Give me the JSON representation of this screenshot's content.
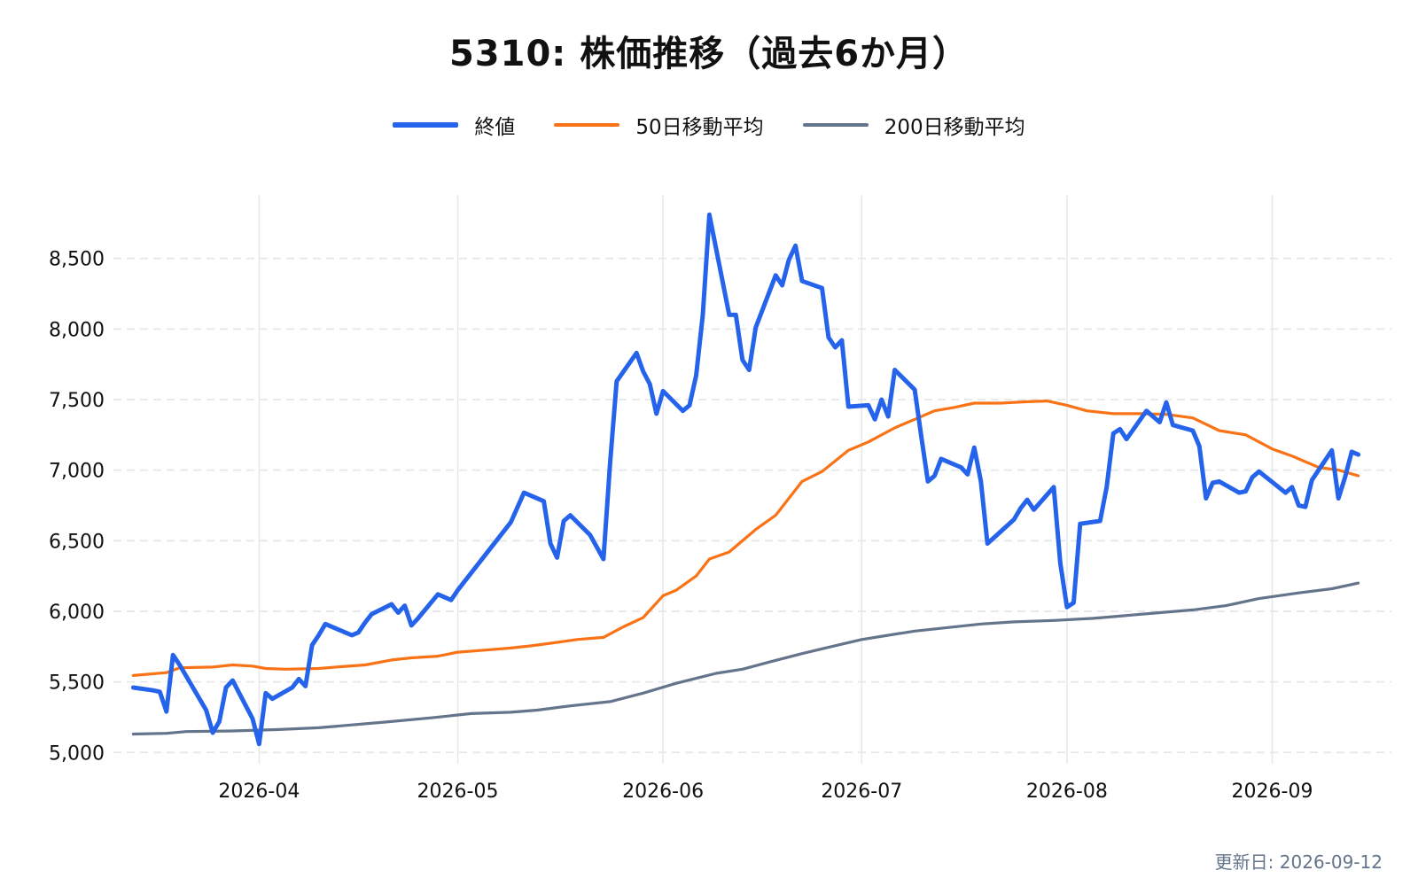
{
  "colors": {
    "close": "#2563eb",
    "ma50": "#f97316",
    "ma200": "#64748b",
    "grid": "#e5e7eb",
    "text": "#111111"
  },
  "footer": "更新日: 2026-09-12",
  "chart_data": {
    "type": "line",
    "title": "5310: 株価推移（過去6か月）",
    "xlabel": "",
    "ylabel": "",
    "xlim": [
      "2026-03-10",
      "2026-09-19"
    ],
    "ylim": [
      4920,
      8950
    ],
    "y_ticks": [
      5000,
      5500,
      6000,
      6500,
      7000,
      7500,
      8000,
      8500
    ],
    "y_tick_labels": [
      "5,000",
      "5,500",
      "6,000",
      "6,500",
      "7,000",
      "7,500",
      "8,000",
      "8,500"
    ],
    "x_ticks": [
      "2026-04-01",
      "2026-05-01",
      "2026-06-01",
      "2026-07-01",
      "2026-08-01",
      "2026-09-01"
    ],
    "x_tick_labels": [
      "2026-04",
      "2026-05",
      "2026-06",
      "2026-07",
      "2026-08",
      "2026-09"
    ],
    "grid": {
      "horizontal": "dashed",
      "vertical": "solid"
    },
    "legend_position": "top-center",
    "series": [
      {
        "name": "終値",
        "color_key": "close",
        "points": [
          [
            "2026-03-13",
            5460
          ],
          [
            "2026-03-16",
            5440
          ],
          [
            "2026-03-17",
            5430
          ],
          [
            "2026-03-18",
            5290
          ],
          [
            "2026-03-19",
            5690
          ],
          [
            "2026-03-20",
            5620
          ],
          [
            "2026-03-23",
            5380
          ],
          [
            "2026-03-24",
            5300
          ],
          [
            "2026-03-25",
            5140
          ],
          [
            "2026-03-26",
            5220
          ],
          [
            "2026-03-27",
            5460
          ],
          [
            "2026-03-28",
            5510
          ],
          [
            "2026-03-30",
            5330
          ],
          [
            "2026-03-31",
            5240
          ],
          [
            "2026-04-01",
            5060
          ],
          [
            "2026-04-02",
            5420
          ],
          [
            "2026-04-03",
            5380
          ],
          [
            "2026-04-06",
            5460
          ],
          [
            "2026-04-07",
            5520
          ],
          [
            "2026-04-08",
            5470
          ],
          [
            "2026-04-09",
            5760
          ],
          [
            "2026-04-10",
            5830
          ],
          [
            "2026-04-11",
            5910
          ],
          [
            "2026-04-14",
            5850
          ],
          [
            "2026-04-15",
            5830
          ],
          [
            "2026-04-16",
            5850
          ],
          [
            "2026-04-17",
            5920
          ],
          [
            "2026-04-18",
            5980
          ],
          [
            "2026-04-21",
            6050
          ],
          [
            "2026-04-22",
            5990
          ],
          [
            "2026-04-23",
            6040
          ],
          [
            "2026-04-24",
            5900
          ],
          [
            "2026-04-25",
            5950
          ],
          [
            "2026-04-28",
            6120
          ],
          [
            "2026-04-30",
            6080
          ],
          [
            "2026-05-01",
            6150
          ],
          [
            "2026-05-05",
            6390
          ],
          [
            "2026-05-09",
            6630
          ],
          [
            "2026-05-11",
            6840
          ],
          [
            "2026-05-14",
            6780
          ],
          [
            "2026-05-15",
            6480
          ],
          [
            "2026-05-16",
            6380
          ],
          [
            "2026-05-17",
            6640
          ],
          [
            "2026-05-18",
            6680
          ],
          [
            "2026-05-21",
            6540
          ],
          [
            "2026-05-23",
            6370
          ],
          [
            "2026-05-24",
            7050
          ],
          [
            "2026-05-25",
            7630
          ],
          [
            "2026-05-28",
            7830
          ],
          [
            "2026-05-29",
            7700
          ],
          [
            "2026-05-30",
            7610
          ],
          [
            "2026-05-31",
            7400
          ],
          [
            "2026-06-01",
            7560
          ],
          [
            "2026-06-04",
            7420
          ],
          [
            "2026-06-05",
            7460
          ],
          [
            "2026-06-06",
            7670
          ],
          [
            "2026-06-07",
            8100
          ],
          [
            "2026-06-08",
            8810
          ],
          [
            "2026-06-11",
            8100
          ],
          [
            "2026-06-12",
            8100
          ],
          [
            "2026-06-13",
            7780
          ],
          [
            "2026-06-14",
            7710
          ],
          [
            "2026-06-15",
            8010
          ],
          [
            "2026-06-18",
            8380
          ],
          [
            "2026-06-19",
            8310
          ],
          [
            "2026-06-20",
            8490
          ],
          [
            "2026-06-21",
            8590
          ],
          [
            "2026-06-22",
            8340
          ],
          [
            "2026-06-25",
            8290
          ],
          [
            "2026-06-26",
            7940
          ],
          [
            "2026-06-27",
            7870
          ],
          [
            "2026-06-28",
            7920
          ],
          [
            "2026-06-29",
            7450
          ],
          [
            "2026-07-02",
            7460
          ],
          [
            "2026-07-03",
            7360
          ],
          [
            "2026-07-04",
            7500
          ],
          [
            "2026-07-05",
            7380
          ],
          [
            "2026-07-06",
            7710
          ],
          [
            "2026-07-09",
            7570
          ],
          [
            "2026-07-10",
            7240
          ],
          [
            "2026-07-11",
            6920
          ],
          [
            "2026-07-12",
            6960
          ],
          [
            "2026-07-13",
            7080
          ],
          [
            "2026-07-16",
            7020
          ],
          [
            "2026-07-17",
            6970
          ],
          [
            "2026-07-18",
            7160
          ],
          [
            "2026-07-19",
            6920
          ],
          [
            "2026-07-20",
            6480
          ],
          [
            "2026-07-24",
            6650
          ],
          [
            "2026-07-25",
            6730
          ],
          [
            "2026-07-26",
            6790
          ],
          [
            "2026-07-27",
            6720
          ],
          [
            "2026-07-30",
            6880
          ],
          [
            "2026-07-31",
            6340
          ],
          [
            "2026-08-01",
            6030
          ],
          [
            "2026-08-02",
            6060
          ],
          [
            "2026-08-03",
            6620
          ],
          [
            "2026-08-06",
            6640
          ],
          [
            "2026-08-07",
            6880
          ],
          [
            "2026-08-08",
            7260
          ],
          [
            "2026-08-09",
            7290
          ],
          [
            "2026-08-10",
            7220
          ],
          [
            "2026-08-13",
            7420
          ],
          [
            "2026-08-14",
            7380
          ],
          [
            "2026-08-15",
            7340
          ],
          [
            "2026-08-16",
            7480
          ],
          [
            "2026-08-17",
            7320
          ],
          [
            "2026-08-20",
            7280
          ],
          [
            "2026-08-21",
            7170
          ],
          [
            "2026-08-22",
            6800
          ],
          [
            "2026-08-23",
            6910
          ],
          [
            "2026-08-24",
            6920
          ],
          [
            "2026-08-27",
            6840
          ],
          [
            "2026-08-28",
            6850
          ],
          [
            "2026-08-29",
            6950
          ],
          [
            "2026-08-30",
            6990
          ],
          [
            "2026-09-03",
            6840
          ],
          [
            "2026-09-04",
            6880
          ],
          [
            "2026-09-05",
            6750
          ],
          [
            "2026-09-06",
            6740
          ],
          [
            "2026-09-07",
            6930
          ],
          [
            "2026-09-10",
            7140
          ],
          [
            "2026-09-11",
            6800
          ],
          [
            "2026-09-12",
            6950
          ],
          [
            "2026-09-13",
            7130
          ],
          [
            "2026-09-14",
            7110
          ]
        ]
      },
      {
        "name": "50日移動平均",
        "color_key": "ma50",
        "points": [
          [
            "2026-03-13",
            5545
          ],
          [
            "2026-03-18",
            5565
          ],
          [
            "2026-03-20",
            5600
          ],
          [
            "2026-03-25",
            5605
          ],
          [
            "2026-03-28",
            5620
          ],
          [
            "2026-03-31",
            5612
          ],
          [
            "2026-04-02",
            5595
          ],
          [
            "2026-04-05",
            5590
          ],
          [
            "2026-04-10",
            5595
          ],
          [
            "2026-04-14",
            5610
          ],
          [
            "2026-04-17",
            5620
          ],
          [
            "2026-04-21",
            5655
          ],
          [
            "2026-04-24",
            5670
          ],
          [
            "2026-04-28",
            5682
          ],
          [
            "2026-05-01",
            5710
          ],
          [
            "2026-05-05",
            5725
          ],
          [
            "2026-05-09",
            5740
          ],
          [
            "2026-05-12",
            5755
          ],
          [
            "2026-05-16",
            5780
          ],
          [
            "2026-05-19",
            5800
          ],
          [
            "2026-05-23",
            5815
          ],
          [
            "2026-05-26",
            5890
          ],
          [
            "2026-05-29",
            5955
          ],
          [
            "2026-06-01",
            6110
          ],
          [
            "2026-06-03",
            6150
          ],
          [
            "2026-06-06",
            6250
          ],
          [
            "2026-06-08",
            6370
          ],
          [
            "2026-06-11",
            6420
          ],
          [
            "2026-06-15",
            6580
          ],
          [
            "2026-06-18",
            6680
          ],
          [
            "2026-06-22",
            6920
          ],
          [
            "2026-06-25",
            6990
          ],
          [
            "2026-06-29",
            7140
          ],
          [
            "2026-07-02",
            7200
          ],
          [
            "2026-07-06",
            7300
          ],
          [
            "2026-07-09",
            7360
          ],
          [
            "2026-07-12",
            7420
          ],
          [
            "2026-07-15",
            7445
          ],
          [
            "2026-07-18",
            7475
          ],
          [
            "2026-07-22",
            7475
          ],
          [
            "2026-07-26",
            7485
          ],
          [
            "2026-07-29",
            7490
          ],
          [
            "2026-08-01",
            7460
          ],
          [
            "2026-08-04",
            7420
          ],
          [
            "2026-08-08",
            7400
          ],
          [
            "2026-08-12",
            7400
          ],
          [
            "2026-08-16",
            7395
          ],
          [
            "2026-08-20",
            7370
          ],
          [
            "2026-08-24",
            7280
          ],
          [
            "2026-08-28",
            7250
          ],
          [
            "2026-09-01",
            7150
          ],
          [
            "2026-09-04",
            7100
          ],
          [
            "2026-09-08",
            7020
          ],
          [
            "2026-09-11",
            7000
          ],
          [
            "2026-09-14",
            6960
          ]
        ]
      },
      {
        "name": "200日移動平均",
        "color_key": "ma200",
        "points": [
          [
            "2026-03-13",
            5130
          ],
          [
            "2026-03-18",
            5135
          ],
          [
            "2026-03-21",
            5148
          ],
          [
            "2026-03-28",
            5152
          ],
          [
            "2026-04-04",
            5162
          ],
          [
            "2026-04-10",
            5175
          ],
          [
            "2026-04-15",
            5195
          ],
          [
            "2026-04-20",
            5215
          ],
          [
            "2026-04-27",
            5245
          ],
          [
            "2026-05-03",
            5275
          ],
          [
            "2026-05-09",
            5285
          ],
          [
            "2026-05-13",
            5300
          ],
          [
            "2026-05-18",
            5330
          ],
          [
            "2026-05-24",
            5360
          ],
          [
            "2026-05-29",
            5420
          ],
          [
            "2026-06-03",
            5490
          ],
          [
            "2026-06-06",
            5525
          ],
          [
            "2026-06-09",
            5560
          ],
          [
            "2026-06-13",
            5590
          ],
          [
            "2026-06-17",
            5640
          ],
          [
            "2026-06-22",
            5700
          ],
          [
            "2026-06-26",
            5745
          ],
          [
            "2026-07-01",
            5800
          ],
          [
            "2026-07-05",
            5830
          ],
          [
            "2026-07-09",
            5860
          ],
          [
            "2026-07-14",
            5885
          ],
          [
            "2026-07-19",
            5910
          ],
          [
            "2026-07-24",
            5925
          ],
          [
            "2026-07-30",
            5935
          ],
          [
            "2026-08-05",
            5950
          ],
          [
            "2026-08-10",
            5970
          ],
          [
            "2026-08-15",
            5990
          ],
          [
            "2026-08-20",
            6010
          ],
          [
            "2026-08-25",
            6040
          ],
          [
            "2026-08-30",
            6090
          ],
          [
            "2026-09-05",
            6130
          ],
          [
            "2026-09-10",
            6160
          ],
          [
            "2026-09-14",
            6200
          ]
        ]
      }
    ]
  }
}
